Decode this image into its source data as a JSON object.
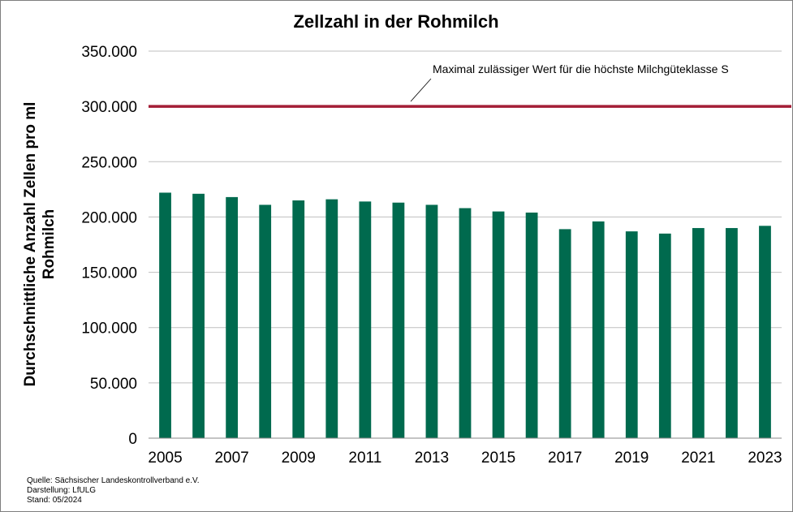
{
  "chart_data": {
    "type": "bar",
    "title": "Zellzahl in der Rohmilch",
    "ylabel_lines": [
      "Durchschnittliche Anzahl Zellen  pro ml",
      "Rohmilch"
    ],
    "xlabel": "",
    "categories": [
      "2005",
      "2006",
      "2007",
      "2008",
      "2009",
      "2010",
      "2011",
      "2012",
      "2013",
      "2014",
      "2015",
      "2016",
      "2017",
      "2018",
      "2019",
      "2020",
      "2021",
      "2022",
      "2023"
    ],
    "x_tick_labels": [
      "2005",
      "2007",
      "2009",
      "2011",
      "2013",
      "2015",
      "2017",
      "2019",
      "2021",
      "2023"
    ],
    "values": [
      222000,
      221000,
      218000,
      211000,
      215000,
      216000,
      214000,
      213000,
      211000,
      208000,
      205000,
      204000,
      189000,
      196000,
      187000,
      185000,
      190000,
      190000,
      192000
    ],
    "ylim": [
      0,
      350000
    ],
    "y_ticks": [
      0,
      50000,
      100000,
      150000,
      200000,
      250000,
      300000,
      350000
    ],
    "y_tick_labels": [
      "0",
      "50.000",
      "100.000",
      "150.000",
      "200.000",
      "250.000",
      "300.000",
      "350.000"
    ],
    "grid": "horizontal",
    "bar_color": "#006a4e",
    "reference_line": {
      "value": 300000,
      "label": "Maximal zulässiger Wert für die höchste Milchgüteklasse  S",
      "color": "#a31d36"
    }
  },
  "footer": {
    "source": "Quelle: Sächsischer Landeskontrollverband e.V.",
    "author": "Darstellung: LfULG",
    "date": "Stand: 05/2024"
  }
}
